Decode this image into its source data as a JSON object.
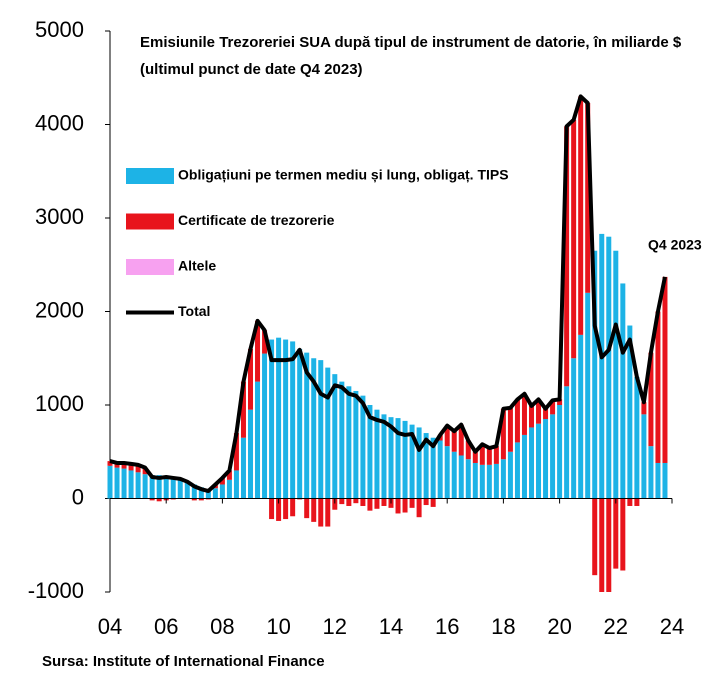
{
  "chart_data": {
    "type": "bar",
    "title": "Emisiunile Trezoreriei SUA după tipul de instrument de datorie, în miliarde $ (ultimul punct de date Q4 2023)",
    "annotation": "Q4 2023",
    "source": "Sursa: Institute of International Finance",
    "stacked": true,
    "x": [
      2004,
      2004.25,
      2004.5,
      2004.75,
      2005,
      2005.25,
      2005.5,
      2005.75,
      2006,
      2006.25,
      2006.5,
      2006.75,
      2007,
      2007.25,
      2007.5,
      2007.75,
      2008,
      2008.25,
      2008.5,
      2008.75,
      2009,
      2009.25,
      2009.5,
      2009.75,
      2010,
      2010.25,
      2010.5,
      2010.75,
      2011,
      2011.25,
      2011.5,
      2011.75,
      2012,
      2012.25,
      2012.5,
      2012.75,
      2013,
      2013.25,
      2013.5,
      2013.75,
      2014,
      2014.25,
      2014.5,
      2014.75,
      2015,
      2015.25,
      2015.5,
      2015.75,
      2016,
      2016.25,
      2016.5,
      2016.75,
      2017,
      2017.25,
      2017.5,
      2017.75,
      2018,
      2018.25,
      2018.5,
      2018.75,
      2019,
      2019.25,
      2019.5,
      2019.75,
      2020,
      2020.25,
      2020.5,
      2020.75,
      2021,
      2021.25,
      2021.5,
      2021.75,
      2022,
      2022.25,
      2022.5,
      2022.75,
      2023,
      2023.25,
      2023.5,
      2023.75
    ],
    "series": [
      {
        "name": "Obligațiuni pe termen mediu și lung, obligaț. TIPS",
        "type": "bar",
        "color": "#1db3e6",
        "values": [
          350,
          330,
          320,
          300,
          280,
          260,
          250,
          250,
          230,
          220,
          210,
          180,
          150,
          120,
          90,
          110,
          150,
          200,
          300,
          650,
          950,
          1250,
          1550,
          1700,
          1720,
          1700,
          1680,
          1600,
          1560,
          1500,
          1480,
          1400,
          1330,
          1250,
          1200,
          1150,
          1100,
          1000,
          950,
          900,
          870,
          860,
          830,
          790,
          760,
          700,
          650,
          620,
          560,
          500,
          460,
          420,
          380,
          360,
          360,
          370,
          420,
          500,
          600,
          680,
          760,
          800,
          850,
          900,
          1000,
          1200,
          1500,
          1750,
          2200,
          2650,
          2830,
          2800,
          2650,
          2300,
          1850,
          1300,
          900,
          560,
          380,
          380
        ]
      },
      {
        "name": "Certificate de trezorerie",
        "type": "bar",
        "color": "#e8141c",
        "values": [
          50,
          50,
          60,
          70,
          80,
          70,
          -20,
          -30,
          -20,
          -10,
          0,
          0,
          -20,
          -20,
          -10,
          40,
          70,
          100,
          400,
          600,
          650,
          650,
          250,
          -220,
          -240,
          -220,
          -190,
          -10,
          -210,
          -250,
          -300,
          -300,
          -120,
          -60,
          -80,
          -50,
          -80,
          -130,
          -110,
          -80,
          -100,
          -160,
          -150,
          -100,
          -200,
          -70,
          -90,
          60,
          220,
          220,
          330,
          200,
          120,
          220,
          180,
          190,
          540,
          470,
          460,
          440,
          230,
          260,
          110,
          150,
          60,
          2780,
          2550,
          2550,
          2030,
          -820,
          -1000,
          -1000,
          -750,
          -770,
          -80,
          -80,
          130,
          1000,
          1620,
          1990
        ]
      },
      {
        "name": "Altele",
        "type": "bar",
        "color": "#f7a1f0",
        "values": [
          0,
          0,
          0,
          0,
          0,
          0,
          0,
          0,
          0,
          0,
          0,
          0,
          0,
          0,
          0,
          0,
          0,
          0,
          0,
          0,
          0,
          0,
          0,
          0,
          0,
          0,
          0,
          0,
          0,
          0,
          0,
          0,
          0,
          0,
          0,
          0,
          0,
          0,
          0,
          0,
          0,
          0,
          0,
          0,
          0,
          0,
          0,
          0,
          0,
          0,
          0,
          0,
          0,
          0,
          0,
          0,
          0,
          0,
          0,
          0,
          0,
          0,
          0,
          0,
          0,
          0,
          0,
          0,
          0,
          0,
          0,
          0,
          0,
          0,
          0,
          0,
          0,
          0,
          0,
          0
        ]
      },
      {
        "name": "Total",
        "type": "line",
        "color": "#000000",
        "values": [
          400,
          380,
          380,
          370,
          360,
          330,
          230,
          220,
          230,
          220,
          210,
          180,
          130,
          100,
          80,
          150,
          220,
          300,
          700,
          1250,
          1600,
          1900,
          1800,
          1480,
          1480,
          1480,
          1490,
          1590,
          1350,
          1250,
          1120,
          1080,
          1210,
          1190,
          1120,
          1100,
          1020,
          870,
          840,
          820,
          770,
          700,
          680,
          690,
          520,
          630,
          560,
          680,
          780,
          720,
          790,
          620,
          500,
          580,
          540,
          560,
          960,
          970,
          1060,
          1120,
          990,
          1060,
          960,
          1050,
          1060,
          3980,
          4050,
          4300,
          4230,
          1850,
          1510,
          1590,
          1860,
          1560,
          1700,
          1300,
          1030,
          1560,
          2000,
          2370
        ]
      }
    ],
    "xlim": [
      2004,
      2024
    ],
    "xticks": [
      {
        "value": 2004,
        "label": "04"
      },
      {
        "value": 2006,
        "label": "06"
      },
      {
        "value": 2008,
        "label": "08"
      },
      {
        "value": 2010,
        "label": "10"
      },
      {
        "value": 2012,
        "label": "12"
      },
      {
        "value": 2014,
        "label": "14"
      },
      {
        "value": 2016,
        "label": "16"
      },
      {
        "value": 2018,
        "label": "18"
      },
      {
        "value": 2020,
        "label": "20"
      },
      {
        "value": 2022,
        "label": "22"
      },
      {
        "value": 2024,
        "label": "24"
      }
    ],
    "ylim": [
      -1000,
      5000
    ],
    "yticks": [
      -1000,
      0,
      1000,
      2000,
      3000,
      4000,
      5000
    ]
  }
}
